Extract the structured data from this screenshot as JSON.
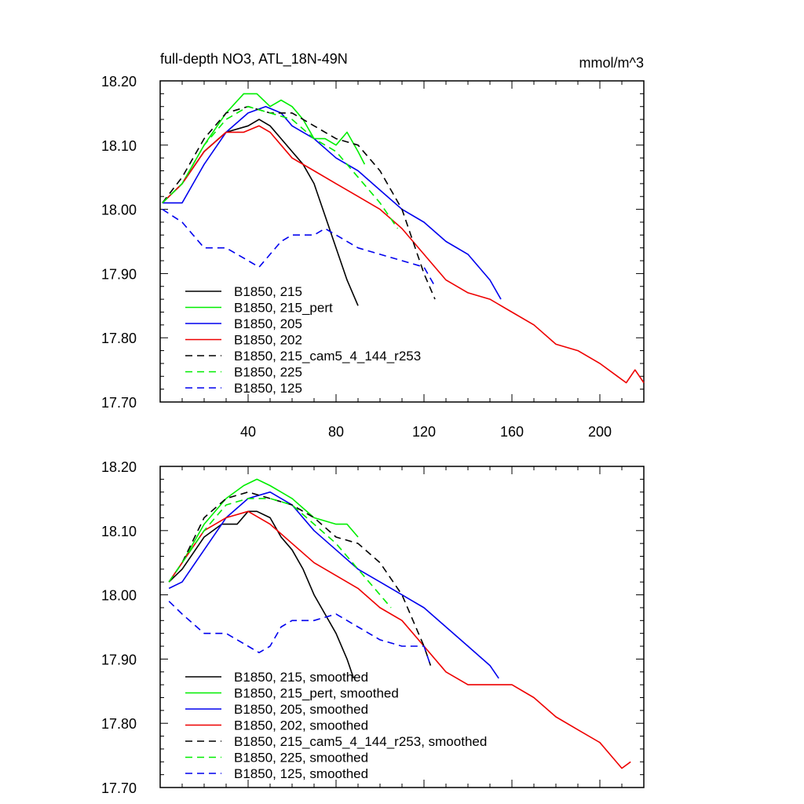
{
  "figure": {
    "title": "full-depth NO3, ATL_18N-49N",
    "units": "mmol/m^3"
  },
  "chart_data": [
    {
      "type": "line",
      "title": "full-depth NO3, ATL_18N-49N",
      "units_label": "mmol/m^3",
      "xlim": [
        0,
        220
      ],
      "ylim": [
        17.7,
        18.2
      ],
      "xticks": [
        40,
        80,
        120,
        160,
        200
      ],
      "xtick_labels": [
        "40",
        "80",
        "120",
        "160",
        "200"
      ],
      "yticks": [
        17.7,
        17.8,
        17.9,
        18.0,
        18.1,
        18.2
      ],
      "ytick_labels": [
        "17.70",
        "17.80",
        "17.90",
        "18.00",
        "18.10",
        "18.20"
      ],
      "legend_position": "bottom-left",
      "series": [
        {
          "name": "B1850, 215",
          "color": "#000000",
          "dash": "solid",
          "x": [
            1,
            10,
            20,
            30,
            40,
            45,
            50,
            55,
            60,
            65,
            70,
            75,
            80,
            85,
            90
          ],
          "y": [
            18.01,
            18.04,
            18.09,
            18.12,
            18.13,
            18.14,
            18.13,
            18.11,
            18.09,
            18.07,
            18.04,
            17.99,
            17.94,
            17.89,
            17.85
          ]
        },
        {
          "name": "B1850, 215_pert",
          "color": "#00ee00",
          "dash": "solid",
          "x": [
            1,
            10,
            20,
            30,
            38,
            44,
            50,
            55,
            60,
            65,
            70,
            75,
            80,
            85,
            90,
            93
          ],
          "y": [
            18.01,
            18.04,
            18.1,
            18.15,
            18.18,
            18.18,
            18.16,
            18.17,
            18.16,
            18.14,
            18.11,
            18.11,
            18.1,
            18.12,
            18.09,
            18.07
          ]
        },
        {
          "name": "B1850, 205",
          "color": "#0000ee",
          "dash": "solid",
          "x": [
            1,
            10,
            20,
            30,
            40,
            48,
            55,
            60,
            70,
            80,
            90,
            100,
            110,
            120,
            130,
            140,
            150,
            155
          ],
          "y": [
            18.01,
            18.01,
            18.07,
            18.12,
            18.15,
            18.16,
            18.15,
            18.13,
            18.11,
            18.08,
            18.06,
            18.03,
            18.0,
            17.98,
            17.95,
            17.93,
            17.89,
            17.86
          ]
        },
        {
          "name": "B1850, 202",
          "color": "#ee0000",
          "dash": "solid",
          "x": [
            1,
            10,
            20,
            30,
            38,
            45,
            50,
            55,
            60,
            70,
            80,
            90,
            100,
            110,
            120,
            130,
            140,
            150,
            160,
            170,
            180,
            190,
            200,
            208,
            212,
            216,
            220
          ],
          "y": [
            18.01,
            18.04,
            18.09,
            18.12,
            18.12,
            18.13,
            18.12,
            18.1,
            18.08,
            18.06,
            18.04,
            18.02,
            18.0,
            17.97,
            17.93,
            17.89,
            17.87,
            17.86,
            17.84,
            17.82,
            17.79,
            17.78,
            17.76,
            17.74,
            17.73,
            17.75,
            17.73
          ]
        },
        {
          "name": "B1850, 215_cam5_4_144_r253",
          "color": "#000000",
          "dash": "dashed",
          "x": [
            1,
            10,
            20,
            30,
            40,
            50,
            60,
            70,
            80,
            90,
            100,
            110,
            115,
            120,
            125
          ],
          "y": [
            18.01,
            18.05,
            18.11,
            18.15,
            18.16,
            18.15,
            18.15,
            18.13,
            18.11,
            18.1,
            18.06,
            18.0,
            17.95,
            17.9,
            17.86
          ]
        },
        {
          "name": "B1850, 225",
          "color": "#00ee00",
          "dash": "dashed",
          "x": [
            1,
            10,
            20,
            30,
            40,
            50,
            60,
            70,
            80,
            90,
            100,
            108
          ],
          "y": [
            18.01,
            18.04,
            18.1,
            18.14,
            18.16,
            18.15,
            18.14,
            18.11,
            18.09,
            18.05,
            18.01,
            17.97
          ]
        },
        {
          "name": "B1850, 125",
          "color": "#0000ee",
          "dash": "dashed",
          "x": [
            1,
            10,
            20,
            30,
            40,
            45,
            50,
            55,
            60,
            70,
            75,
            80,
            90,
            100,
            110,
            120,
            125
          ],
          "y": [
            18.0,
            17.98,
            17.94,
            17.94,
            17.92,
            17.91,
            17.93,
            17.95,
            17.96,
            17.96,
            17.97,
            17.96,
            17.94,
            17.93,
            17.92,
            17.91,
            17.88
          ]
        }
      ]
    },
    {
      "type": "line",
      "xlim": [
        0,
        220
      ],
      "ylim": [
        17.7,
        18.2
      ],
      "xticks": [
        40,
        80,
        120,
        160,
        200
      ],
      "yticks": [
        17.7,
        17.8,
        17.9,
        18.0,
        18.1,
        18.2
      ],
      "ytick_labels": [
        "17.70",
        "17.80",
        "17.90",
        "18.00",
        "18.10",
        "18.20"
      ],
      "legend_position": "bottom-left",
      "series": [
        {
          "name": "B1850, 215, smoothed",
          "color": "#000000",
          "dash": "solid",
          "x": [
            4,
            10,
            20,
            28,
            35,
            40,
            44,
            50,
            55,
            60,
            65,
            70,
            75,
            80,
            85,
            88
          ],
          "y": [
            18.02,
            18.04,
            18.09,
            18.11,
            18.11,
            18.13,
            18.13,
            18.12,
            18.09,
            18.07,
            18.04,
            18.0,
            17.97,
            17.94,
            17.9,
            17.87
          ]
        },
        {
          "name": "B1850, 215_pert, smoothed",
          "color": "#00ee00",
          "dash": "solid",
          "x": [
            4,
            10,
            20,
            30,
            38,
            44,
            50,
            55,
            60,
            70,
            80,
            85,
            90
          ],
          "y": [
            18.02,
            18.05,
            18.11,
            18.15,
            18.17,
            18.18,
            18.17,
            18.16,
            18.15,
            18.12,
            18.11,
            18.11,
            18.09
          ]
        },
        {
          "name": "B1850, 205, smoothed",
          "color": "#0000ee",
          "dash": "solid",
          "x": [
            4,
            10,
            20,
            30,
            40,
            50,
            60,
            70,
            80,
            90,
            100,
            110,
            120,
            130,
            140,
            150,
            154
          ],
          "y": [
            18.01,
            18.02,
            18.07,
            18.12,
            18.15,
            18.16,
            18.14,
            18.1,
            18.07,
            18.04,
            18.02,
            18.0,
            17.98,
            17.95,
            17.92,
            17.89,
            17.87
          ]
        },
        {
          "name": "B1850, 202, smoothed",
          "color": "#ee0000",
          "dash": "solid",
          "x": [
            4,
            10,
            20,
            30,
            40,
            50,
            60,
            70,
            80,
            90,
            100,
            110,
            120,
            130,
            140,
            150,
            160,
            170,
            180,
            190,
            200,
            205,
            210,
            214
          ],
          "y": [
            18.02,
            18.05,
            18.1,
            18.12,
            18.13,
            18.11,
            18.08,
            18.05,
            18.03,
            18.01,
            17.98,
            17.96,
            17.92,
            17.88,
            17.86,
            17.86,
            17.86,
            17.84,
            17.81,
            17.79,
            17.77,
            17.75,
            17.73,
            17.74
          ]
        },
        {
          "name": "B1850, 215_cam5_4_144_r253, smoothed",
          "color": "#000000",
          "dash": "dashed",
          "x": [
            4,
            10,
            20,
            30,
            40,
            50,
            60,
            70,
            80,
            90,
            100,
            110,
            115,
            120,
            123
          ],
          "y": [
            18.02,
            18.05,
            18.12,
            18.15,
            18.16,
            18.15,
            18.14,
            18.12,
            18.09,
            18.08,
            18.05,
            18.0,
            17.96,
            17.92,
            17.89
          ]
        },
        {
          "name": "B1850, 225, smoothed",
          "color": "#00ee00",
          "dash": "dashed",
          "x": [
            4,
            10,
            20,
            30,
            40,
            50,
            60,
            70,
            80,
            90,
            100,
            105
          ],
          "y": [
            18.02,
            18.05,
            18.1,
            18.14,
            18.15,
            18.15,
            18.14,
            18.11,
            18.08,
            18.04,
            18.0,
            17.98
          ]
        },
        {
          "name": "B1850, 125, smoothed",
          "color": "#0000ee",
          "dash": "dashed",
          "x": [
            4,
            10,
            20,
            30,
            40,
            45,
            50,
            55,
            60,
            70,
            80,
            90,
            100,
            110,
            120,
            123
          ],
          "y": [
            17.99,
            17.97,
            17.94,
            17.94,
            17.92,
            17.91,
            17.92,
            17.95,
            17.96,
            17.96,
            17.97,
            17.95,
            17.93,
            17.92,
            17.92,
            17.89
          ]
        }
      ]
    }
  ]
}
